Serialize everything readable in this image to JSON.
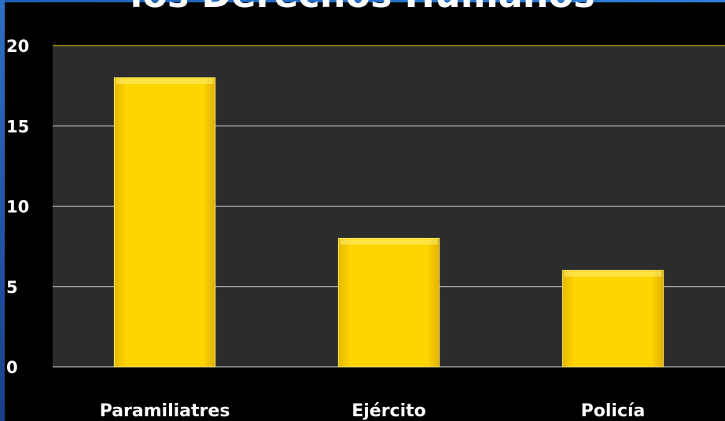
{
  "chart_data": {
    "type": "bar",
    "title": "los Derechos Humanos",
    "categories": [
      "Paramiliatres",
      "Ejército",
      "Policía"
    ],
    "values": [
      18,
      8,
      6
    ],
    "ylim": [
      0,
      20
    ],
    "yticks": [
      "0",
      "5",
      "10",
      "15",
      "20"
    ],
    "xlabel": "",
    "ylabel": "",
    "grid": true,
    "legend": "none",
    "colors": {
      "bar": "#ffd000",
      "bar_edge": "#ffe866",
      "plot_background": "#2c2c2c",
      "gridline": "#b8b8b8",
      "top_border": "#c8b400",
      "page_background": "#000000"
    }
  }
}
